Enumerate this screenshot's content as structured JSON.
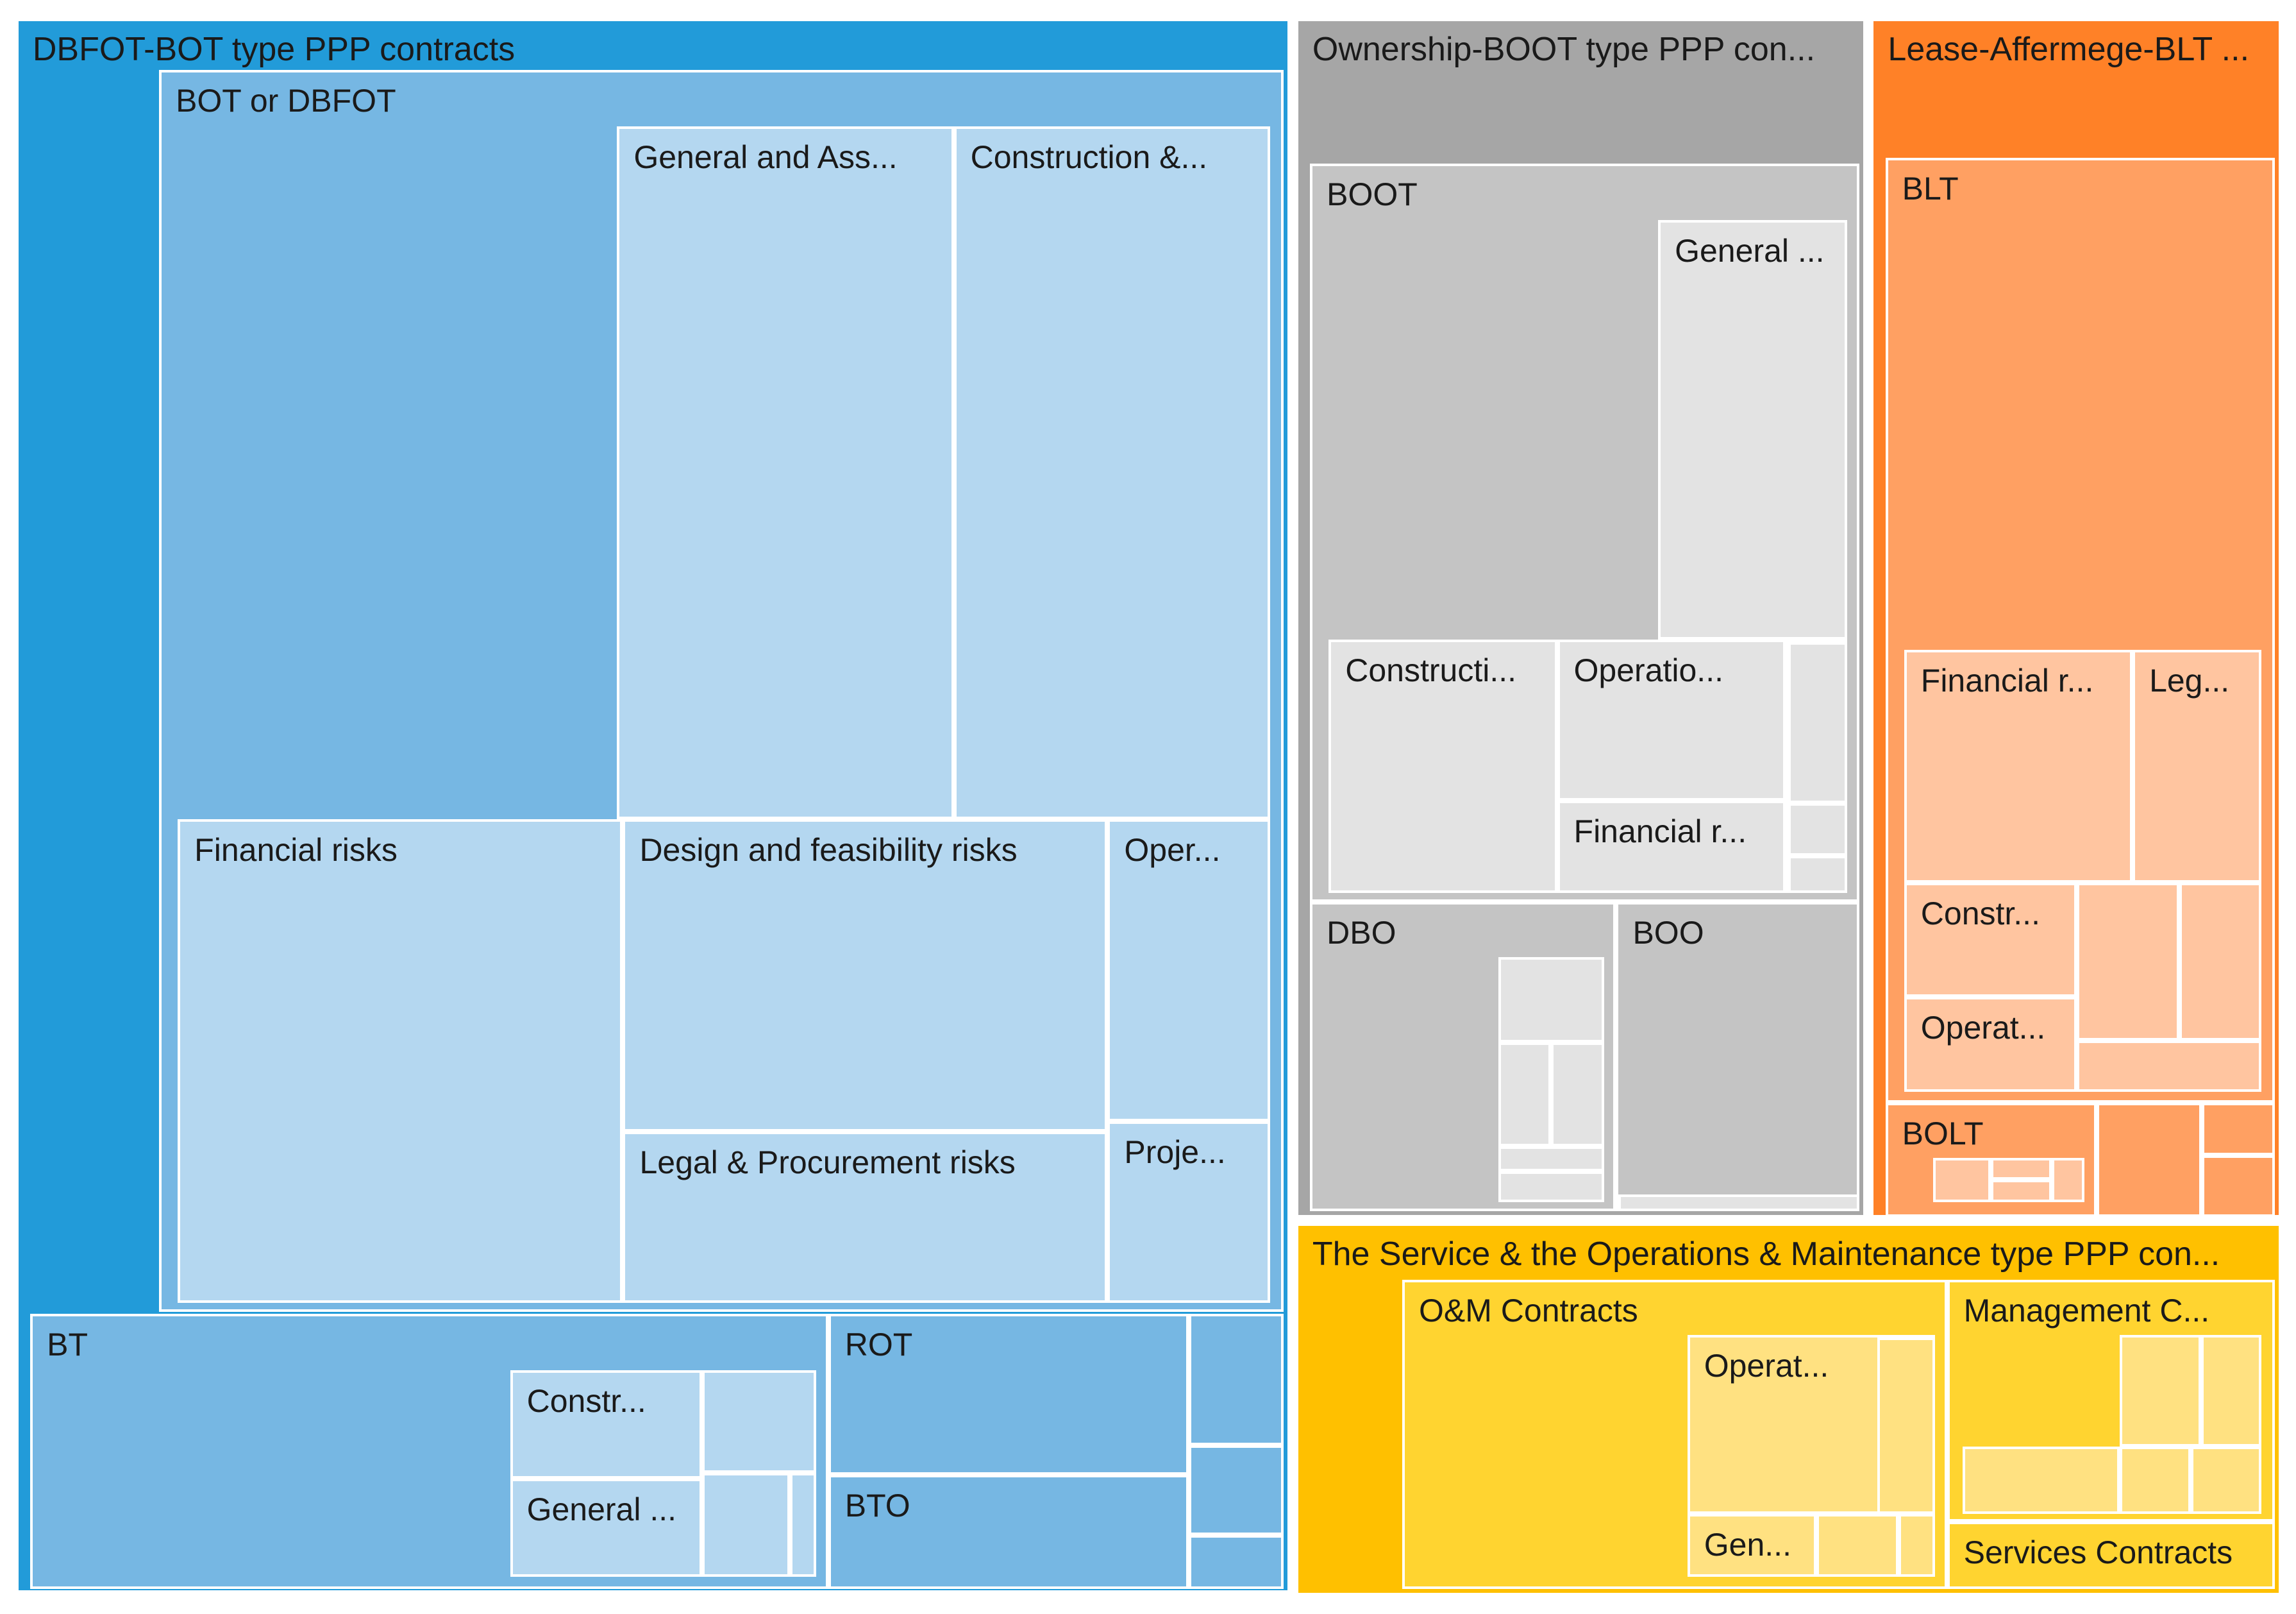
{
  "chart_data": {
    "type": "treemap",
    "title": "",
    "groups": [
      {
        "name": "DBFOT-BOT type PPP contracts",
        "color": "#229bd9",
        "children": [
          {
            "name": "BOT or DBFOT",
            "color": "#76b7e3",
            "children": [
              {
                "name": "General and Ass...",
                "color": "#b4d7f0"
              },
              {
                "name": "Construction &...",
                "color": "#b4d7f0"
              },
              {
                "name": "Financial risks",
                "color": "#b4d7f0"
              },
              {
                "name": "Design and feasibility risks",
                "color": "#b4d7f0"
              },
              {
                "name": "Legal & Procurement risks",
                "color": "#b4d7f0"
              },
              {
                "name": "Oper...",
                "color": "#b4d7f0"
              },
              {
                "name": "Proje...",
                "color": "#b4d7f0"
              }
            ]
          },
          {
            "name": "BT",
            "color": "#76b7e3",
            "children": [
              {
                "name": "Constr...",
                "color": "#b4d7f0"
              },
              {
                "name": "General ...",
                "color": "#b4d7f0"
              },
              {
                "name": "",
                "color": "#b4d7f0"
              },
              {
                "name": "",
                "color": "#b4d7f0"
              },
              {
                "name": "",
                "color": "#b4d7f0"
              }
            ]
          },
          {
            "name": "ROT",
            "color": "#76b7e3",
            "children": []
          },
          {
            "name": "BTO",
            "color": "#76b7e3",
            "children": []
          },
          {
            "name": "",
            "color": "#76b7e3",
            "children": []
          },
          {
            "name": "",
            "color": "#76b7e3",
            "children": []
          },
          {
            "name": "",
            "color": "#76b7e3",
            "children": []
          }
        ]
      },
      {
        "name": "Ownership-BOOT type PPP con...",
        "color": "#a6a6a6",
        "children": [
          {
            "name": "BOOT",
            "color": "#c4c4c4",
            "children": [
              {
                "name": "General ...",
                "color": "#e3e3e3"
              },
              {
                "name": "Constructi...",
                "color": "#e3e3e3"
              },
              {
                "name": "Operatio...",
                "color": "#e3e3e3"
              },
              {
                "name": "Financial r...",
                "color": "#e3e3e3"
              },
              {
                "name": "",
                "color": "#e3e3e3"
              }
            ]
          },
          {
            "name": "DBO",
            "color": "#c4c4c4",
            "children": []
          },
          {
            "name": "BOO",
            "color": "#c4c4c4",
            "children": []
          }
        ]
      },
      {
        "name": "Lease-Affermege-BLT ...",
        "color": "#ff8127",
        "children": [
          {
            "name": "BLT",
            "color": "#ffa062",
            "children": [
              {
                "name": "Financial r...",
                "color": "#ffc5a0"
              },
              {
                "name": "Leg...",
                "color": "#ffc5a0"
              },
              {
                "name": "Constr...",
                "color": "#ffc5a0"
              },
              {
                "name": "Operat...",
                "color": "#ffc5a0"
              }
            ]
          },
          {
            "name": "BOLT",
            "color": "#ffa062",
            "children": []
          }
        ]
      },
      {
        "name": "The Service & the Operations & Maintenance type PPP con...",
        "color": "#ffc000",
        "children": [
          {
            "name": "O&M Contracts",
            "color": "#ffd430",
            "children": [
              {
                "name": "Operat...",
                "color": "#ffe181"
              },
              {
                "name": "Gen...",
                "color": "#ffe181"
              }
            ]
          },
          {
            "name": "Management C...",
            "color": "#ffd430",
            "children": []
          },
          {
            "name": "Services Contracts",
            "color": "#ffd430",
            "children": []
          }
        ]
      }
    ]
  }
}
